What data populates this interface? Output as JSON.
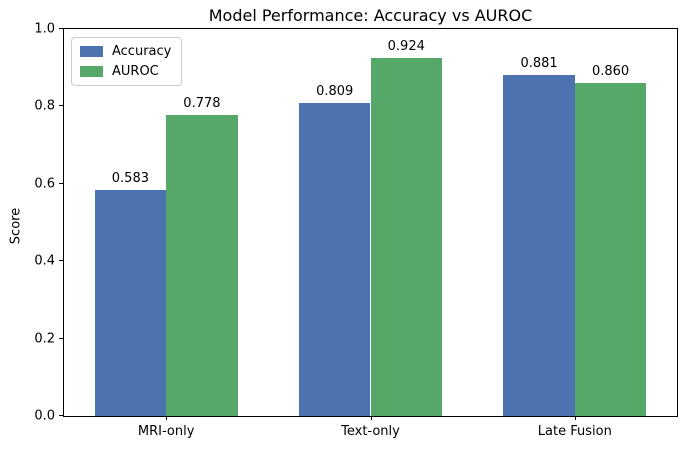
{
  "chart_data": {
    "type": "bar",
    "title": "Model Performance: Accuracy vs AUROC",
    "xlabel": "",
    "ylabel": "Score",
    "categories": [
      "MRI-only",
      "Text-only",
      "Late Fusion"
    ],
    "series": [
      {
        "name": "Accuracy",
        "color": "#4c72b0",
        "values": [
          0.583,
          0.809,
          0.881
        ]
      },
      {
        "name": "AUROC",
        "color": "#55a868",
        "values": [
          0.778,
          0.924,
          0.86
        ]
      }
    ],
    "value_labels": [
      [
        "0.583",
        "0.809",
        "0.881"
      ],
      [
        "0.778",
        "0.924",
        "0.860"
      ]
    ],
    "ylim": [
      0.0,
      1.0
    ],
    "yticks": [
      "0.0",
      "0.2",
      "0.4",
      "0.6",
      "0.8",
      "1.0"
    ],
    "bar_width_fraction": 0.35,
    "grid": false,
    "legend_position": "upper left",
    "background_color": "#ffffff",
    "spine_color": "#000000"
  }
}
